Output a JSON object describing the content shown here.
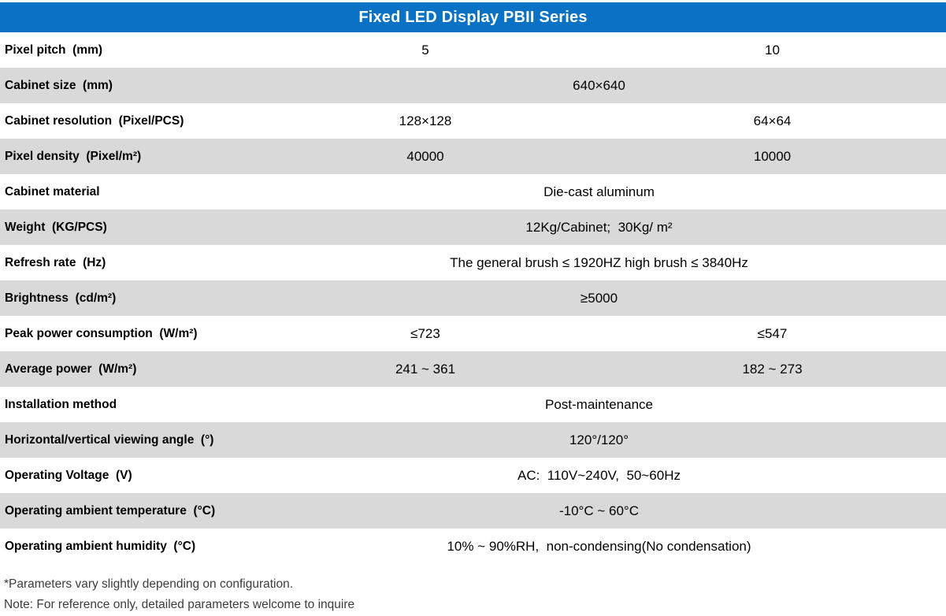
{
  "title": "Fixed LED Display PBII Series",
  "colors": {
    "header_bg": "#0A72C5",
    "alt_row_bg": "#D9D9D9",
    "header_text": "#FFFFFF",
    "body_text": "#000000",
    "note_text": "#3C3C3C"
  },
  "table": {
    "rows": [
      {
        "label": "Pixel pitch  (mm)",
        "col2": "5",
        "col3": "10"
      },
      {
        "label": "Cabinet size  (mm)",
        "value": "640×640"
      },
      {
        "label": "Cabinet resolution  (Pixel/PCS)",
        "col2": "128×128",
        "col3": "64×64"
      },
      {
        "label": "Pixel density  (Pixel/m²)",
        "col2": "40000",
        "col3": "10000"
      },
      {
        "label": "Cabinet material",
        "value": "Die-cast aluminum"
      },
      {
        "label": "Weight  (KG/PCS)",
        "value": "12Kg/Cabinet;  30Kg/ m²"
      },
      {
        "label": "Refresh rate  (Hz)",
        "value": "The general brush ≤ 1920HZ high brush ≤ 3840Hz"
      },
      {
        "label": "Brightness  (cd/m²)",
        "value": "≥5000"
      },
      {
        "label": "Peak power consumption  (W/m²)",
        "col2": "≤723",
        "col3": "≤547"
      },
      {
        "label": "Average power  (W/m²)",
        "col2": "241 ~ 361",
        "col3": "182 ~ 273"
      },
      {
        "label": "Installation method",
        "value": "Post-maintenance"
      },
      {
        "label": "Horizontal/vertical viewing angle  (°)",
        "value": "120°/120°"
      },
      {
        "label": "Operating Voltage  (V)",
        "value": "AC:  110V~240V,  50~60Hz"
      },
      {
        "label": "Operating ambient temperature  (°C)",
        "value": "-10°C ~ 60°C"
      },
      {
        "label": "Operating ambient humidity  (°C)",
        "value": "10% ~ 90%RH,  non-condensing(No condensation)"
      }
    ]
  },
  "notes": [
    "*Parameters vary slightly depending on configuration.",
    "Note: For reference only, detailed parameters welcome to inquire"
  ]
}
